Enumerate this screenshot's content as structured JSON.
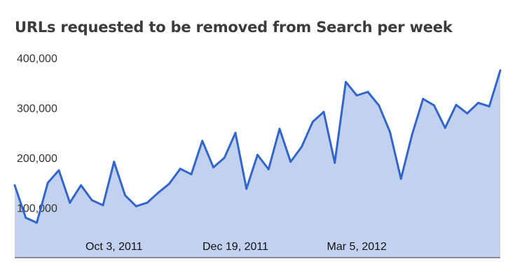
{
  "chart_data": {
    "type": "area",
    "title": "URLs requested to be removed from Search per week",
    "xlabel": "",
    "ylabel": "",
    "ylim": [
      0,
      400000
    ],
    "yticks": [
      {
        "value": 100000,
        "label": "100,000"
      },
      {
        "value": 200000,
        "label": "200,000"
      },
      {
        "value": 300000,
        "label": "300,000"
      },
      {
        "value": 400000,
        "label": "400,000"
      }
    ],
    "xticks": [
      {
        "index": 9,
        "label": "Oct 3, 2011"
      },
      {
        "index": 20,
        "label": "Dec 19, 2011"
      },
      {
        "index": 31,
        "label": "Mar 5, 2012"
      }
    ],
    "grid": false,
    "line_color": "#3366cc",
    "fill_color": "#c2d1f0",
    "values": [
      145000,
      80000,
      70000,
      150000,
      175000,
      110000,
      145000,
      115000,
      105000,
      192000,
      125000,
      103000,
      110000,
      130000,
      148000,
      178000,
      167000,
      234000,
      181000,
      200000,
      250000,
      138000,
      206000,
      177000,
      258000,
      192000,
      222000,
      272000,
      292000,
      190000,
      352000,
      325000,
      332000,
      305000,
      252000,
      158000,
      246000,
      318000,
      305000,
      260000,
      306000,
      289000,
      310000,
      303000,
      375000
    ]
  }
}
